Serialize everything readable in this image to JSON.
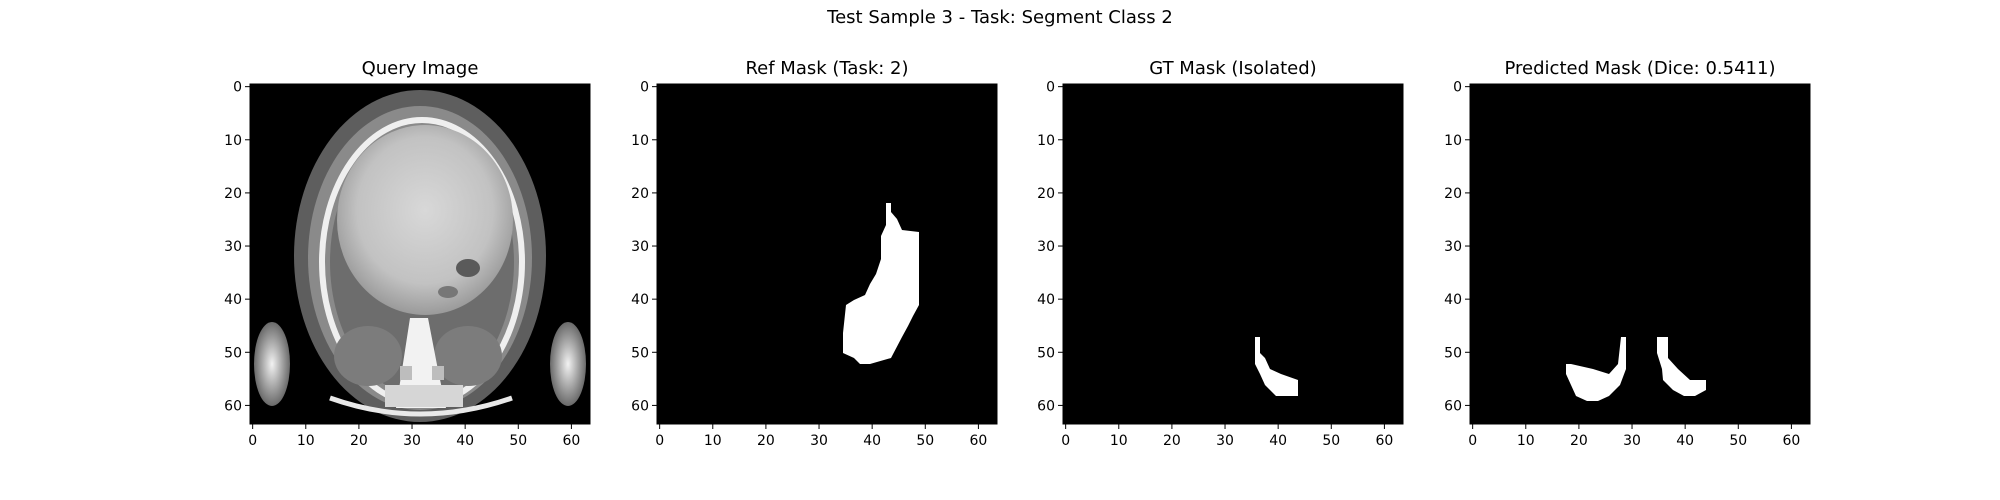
{
  "figure": {
    "suptitle": "Test Sample 3 - Task: Segment Class 2"
  },
  "chart_data": [
    {
      "type": "heatmap",
      "title": "Query Image",
      "content": "grayscale CT slice",
      "xlim": [
        0,
        63
      ],
      "ylim": [
        63,
        0
      ],
      "xticks": [
        0,
        10,
        20,
        30,
        40,
        50,
        60
      ],
      "yticks": [
        0,
        10,
        20,
        30,
        40,
        50,
        60
      ],
      "colormap": "gray"
    },
    {
      "type": "heatmap",
      "title": "Ref Mask (Task: 2)",
      "content": "binary mask",
      "xlim": [
        0,
        63
      ],
      "ylim": [
        63,
        0
      ],
      "xticks": [
        0,
        10,
        20,
        30,
        40,
        50,
        60
      ],
      "yticks": [
        0,
        10,
        20,
        30,
        40,
        50,
        60
      ],
      "colormap": "gray"
    },
    {
      "type": "heatmap",
      "title": "GT Mask (Isolated)",
      "content": "binary mask",
      "xlim": [
        0,
        63
      ],
      "ylim": [
        63,
        0
      ],
      "xticks": [
        0,
        10,
        20,
        30,
        40,
        50,
        60
      ],
      "yticks": [
        0,
        10,
        20,
        30,
        40,
        50,
        60
      ],
      "colormap": "gray"
    },
    {
      "type": "heatmap",
      "title": "Predicted Mask (Dice: 0.5411)",
      "content": "binary mask",
      "xlim": [
        0,
        63
      ],
      "ylim": [
        63,
        0
      ],
      "xticks": [
        0,
        10,
        20,
        30,
        40,
        50,
        60
      ],
      "yticks": [
        0,
        10,
        20,
        30,
        40,
        50,
        60
      ],
      "colormap": "gray"
    }
  ],
  "colors": {
    "background": "#000000",
    "mask": "#ffffff"
  }
}
